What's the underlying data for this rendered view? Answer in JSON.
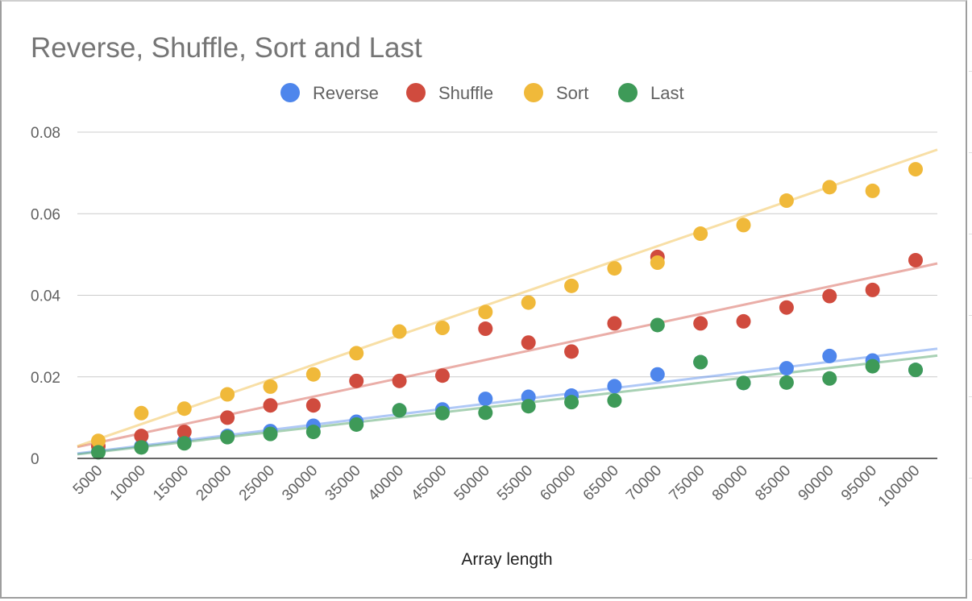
{
  "colors": {
    "reverse": "#4e86ec",
    "shuffle": "#d04b3e",
    "sort": "#f0b93a",
    "last": "#3e9a58",
    "gridline": "#cccccc",
    "baseline": "#333333"
  },
  "chart_data": {
    "type": "scatter",
    "title": "Reverse, Shuffle, Sort and Last",
    "xlabel": "Array length",
    "ylabel": "",
    "x": [
      5000,
      10000,
      15000,
      20000,
      25000,
      30000,
      35000,
      40000,
      45000,
      50000,
      55000,
      60000,
      65000,
      70000,
      75000,
      80000,
      85000,
      90000,
      95000,
      100000
    ],
    "x_tick_labels": [
      "5000",
      "10000",
      "15000",
      "20000",
      "25000",
      "30000",
      "35000",
      "40000",
      "45000",
      "50000",
      "55000",
      "60000",
      "65000",
      "70000",
      "75000",
      "80000",
      "85000",
      "90000",
      "95000",
      "100000"
    ],
    "y_tick_labels": [
      "0",
      "0.02",
      "0.04",
      "0.06",
      "0.08"
    ],
    "ylim": [
      0,
      0.08
    ],
    "grid": true,
    "legend_position": "top",
    "trendlines": true,
    "series": [
      {
        "name": "Reverse",
        "color_key": "reverse",
        "values": [
          0.0017,
          0.003,
          0.0042,
          0.0055,
          0.0067,
          0.008,
          0.009,
          0.0118,
          0.012,
          0.0146,
          0.0151,
          0.0154,
          0.0177,
          0.0206,
          0.0236,
          0.0185,
          0.0221,
          0.0251,
          0.024,
          0.0217
        ],
        "trend": [
          0.0012,
          0.0269
        ]
      },
      {
        "name": "Shuffle",
        "color_key": "shuffle",
        "values": [
          0.003,
          0.0055,
          0.0065,
          0.01,
          0.013,
          0.013,
          0.019,
          0.019,
          0.0203,
          0.0318,
          0.0284,
          0.0262,
          0.0331,
          0.0494,
          0.0331,
          0.0336,
          0.037,
          0.0398,
          0.0413,
          0.0486
        ],
        "trend": [
          0.0028,
          0.0478
        ]
      },
      {
        "name": "Sort",
        "color_key": "sort",
        "values": [
          0.0043,
          0.0111,
          0.0122,
          0.0157,
          0.0176,
          0.0206,
          0.0258,
          0.0311,
          0.032,
          0.0359,
          0.0382,
          0.0423,
          0.0466,
          0.048,
          0.0551,
          0.0572,
          0.0632,
          0.0665,
          0.0656,
          0.0709
        ],
        "trend": [
          0.003,
          0.0757
        ]
      },
      {
        "name": "Last",
        "color_key": "last",
        "values": [
          0.0015,
          0.0027,
          0.0037,
          0.0052,
          0.006,
          0.0065,
          0.0083,
          0.0118,
          0.0111,
          0.0112,
          0.0128,
          0.0138,
          0.0142,
          0.0327,
          0.0236,
          0.0185,
          0.0186,
          0.0196,
          0.0226,
          0.0217
        ],
        "trend": [
          0.001,
          0.0252
        ]
      }
    ]
  }
}
